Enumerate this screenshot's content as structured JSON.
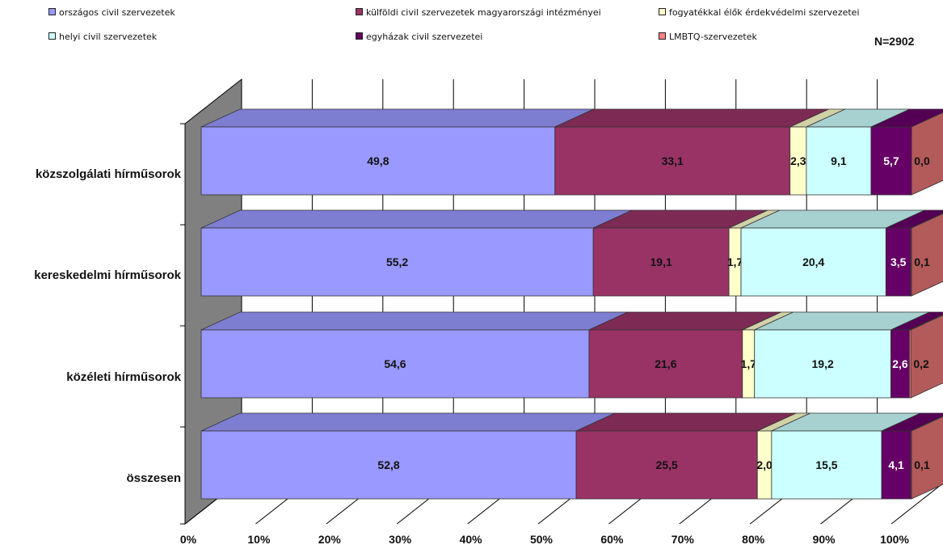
{
  "n_label": "N=2902",
  "chart_data": {
    "type": "bar",
    "orientation": "horizontal",
    "stacked": "100%",
    "three_d": true,
    "categories": [
      "közszolgálati hírműsorok",
      "kereskedelmi hírműsorok",
      "közéleti hírműsorok",
      "összesen"
    ],
    "series": [
      {
        "name": "országos civil szervezetek",
        "color": "#9999ff",
        "values": [
          49.8,
          55.2,
          54.6,
          52.8
        ],
        "labels": [
          "49,8",
          "55,2",
          "54,6",
          "52,8"
        ]
      },
      {
        "name": "külföldi civil szervezetek magyarországi intézményei",
        "color": "#993366",
        "values": [
          33.1,
          19.1,
          21.6,
          25.5
        ],
        "labels": [
          "33,1",
          "19,1",
          "21,6",
          "25,5"
        ]
      },
      {
        "name": "fogyatékkal élők érdekvédelmi szervezetei",
        "color": "#ffffcc",
        "values": [
          2.3,
          1.7,
          1.7,
          2.0
        ],
        "labels": [
          "2,3",
          "1,7",
          "1,7",
          "2,0"
        ]
      },
      {
        "name": "helyi civil szervezetek",
        "color": "#ccffff",
        "values": [
          9.1,
          20.4,
          19.2,
          15.5
        ],
        "labels": [
          "9,1",
          "20,4",
          "19,2",
          "15,5"
        ]
      },
      {
        "name": "egyházak civil szervezetei",
        "color": "#660066",
        "values": [
          5.7,
          3.5,
          2.6,
          4.1
        ],
        "labels": [
          "5,7",
          "3,5",
          "2,6",
          "4,1"
        ]
      },
      {
        "name": "LMBTQ-szervezetek",
        "color": "#ff8080",
        "values": [
          0.0,
          0.1,
          0.2,
          0.1
        ],
        "labels": [
          "0,0",
          "0,1",
          "0,2",
          "0,1"
        ]
      }
    ],
    "xaxis": {
      "min": 0,
      "max": 100,
      "ticks": [
        "0%",
        "10%",
        "20%",
        "30%",
        "40%",
        "50%",
        "60%",
        "70%",
        "80%",
        "90%",
        "100%"
      ]
    },
    "legend_position": "top",
    "grid": true
  }
}
